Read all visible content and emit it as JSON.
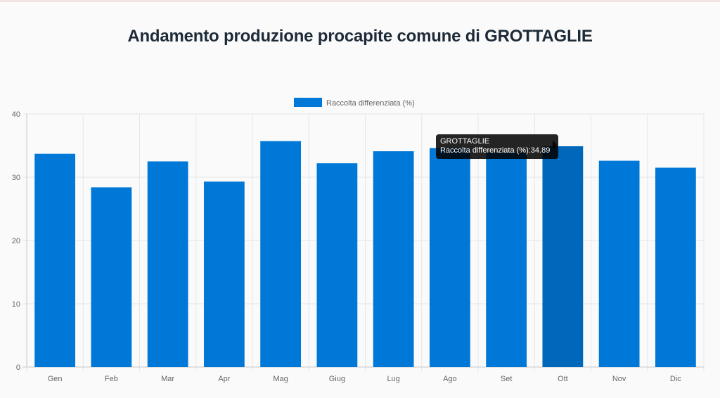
{
  "title": "Andamento produzione procapite comune di GROTTAGLIE",
  "colors": {
    "bar": "#0078d7",
    "bar_active": "#0068ba",
    "grid": "#e6e6e6",
    "axis": "#666666"
  },
  "chart_data": {
    "type": "bar",
    "categories": [
      "Gen",
      "Feb",
      "Mar",
      "Apr",
      "Mag",
      "Giug",
      "Lug",
      "Ago",
      "Set",
      "Ott",
      "Nov",
      "Dic"
    ],
    "series": [
      {
        "name": "Raccolta differenziata (%)",
        "values": [
          33.7,
          28.4,
          32.5,
          29.3,
          35.7,
          32.2,
          34.1,
          34.6,
          33.9,
          34.89,
          32.6,
          31.5
        ]
      }
    ],
    "ylim": [
      0,
      40
    ],
    "yticks": [
      0,
      10,
      20,
      30,
      40
    ],
    "legend": "top",
    "grid": true,
    "active_index": 9
  },
  "tooltip": {
    "title": "GROTTAGLIE",
    "body": "Raccolta differenziata (%):34.89"
  }
}
